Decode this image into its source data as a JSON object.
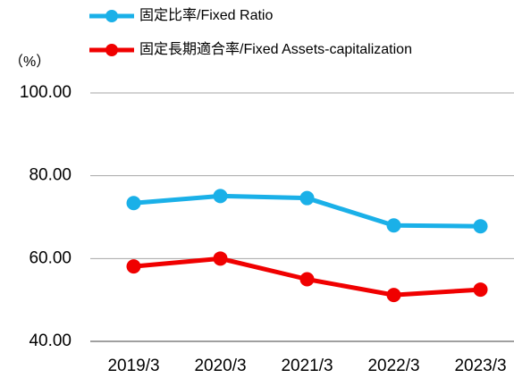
{
  "chart_data": {
    "type": "line",
    "unit_label": "（%）",
    "categories": [
      "2019/3",
      "2020/3",
      "2021/3",
      "2022/3",
      "2023/3"
    ],
    "series": [
      {
        "name": "固定比率/Fixed Ratio",
        "color": "#1ab0e8",
        "values": [
          73.4,
          75.1,
          74.6,
          68.0,
          67.8
        ]
      },
      {
        "name": "固定長期適合率/Fixed Assets-capitalization",
        "color": "#f00000",
        "values": [
          58.1,
          60.0,
          55.0,
          51.2,
          52.5
        ]
      }
    ],
    "ylim": [
      40,
      100
    ],
    "yticks": [
      {
        "value": 40,
        "label": "40.00"
      },
      {
        "value": 60,
        "label": "60.00"
      },
      {
        "value": 80,
        "label": "80.00"
      },
      {
        "value": 100,
        "label": "100.00"
      }
    ],
    "grid": true
  }
}
